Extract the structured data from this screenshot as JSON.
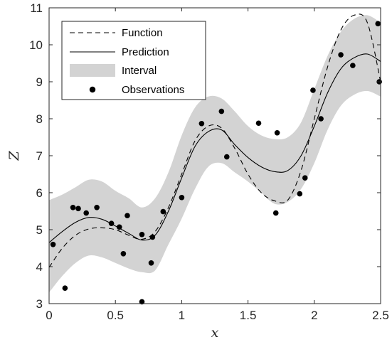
{
  "chart_data": {
    "type": "line",
    "xlabel": "x",
    "ylabel": "Z",
    "xlim": [
      0,
      2.5
    ],
    "ylim": [
      3,
      11
    ],
    "xticks": [
      "0",
      "0.5",
      "1",
      "1.5",
      "2",
      "2.5"
    ],
    "yticks": [
      "3",
      "4",
      "5",
      "6",
      "7",
      "8",
      "9",
      "10",
      "11"
    ],
    "grid": false,
    "legend_position": "top-left",
    "legend": [
      "Function",
      "Prediction",
      "Interval",
      "Observations"
    ],
    "colors": {
      "line": "#000000",
      "band": "#d3d3d3",
      "points": "#000000"
    },
    "x": [
      0,
      0.1,
      0.2,
      0.3,
      0.4,
      0.5,
      0.6,
      0.7,
      0.8,
      0.9,
      1.0,
      1.1,
      1.2,
      1.3,
      1.4,
      1.5,
      1.6,
      1.7,
      1.8,
      1.9,
      2.0,
      2.1,
      2.2,
      2.3,
      2.4,
      2.5
    ],
    "series": [
      {
        "name": "Function",
        "style": "dashed",
        "y": [
          3.98,
          4.5,
          4.85,
          5.02,
          5.05,
          5.0,
          4.85,
          4.74,
          4.95,
          5.6,
          6.5,
          7.4,
          7.8,
          7.75,
          7.2,
          6.5,
          6.0,
          5.78,
          5.8,
          6.6,
          8.0,
          9.4,
          10.4,
          10.8,
          10.6,
          9.0
        ]
      },
      {
        "name": "Prediction",
        "style": "solid",
        "y": [
          4.65,
          4.95,
          5.2,
          5.33,
          5.28,
          5.1,
          4.9,
          4.72,
          4.85,
          5.5,
          6.4,
          7.25,
          7.65,
          7.7,
          7.3,
          6.95,
          6.7,
          6.57,
          6.6,
          7.0,
          7.8,
          8.7,
          9.35,
          9.65,
          9.75,
          9.55
        ]
      },
      {
        "name": "Interval",
        "style": "band",
        "lower": [
          3.3,
          3.75,
          4.1,
          4.3,
          4.25,
          4.1,
          3.95,
          3.85,
          3.9,
          4.6,
          5.3,
          6.1,
          6.7,
          6.8,
          6.55,
          6.3,
          6.0,
          5.7,
          5.75,
          6.1,
          6.8,
          7.7,
          8.35,
          8.65,
          8.75,
          8.6
        ],
        "upper": [
          5.8,
          5.95,
          6.15,
          6.35,
          6.3,
          6.05,
          5.85,
          5.6,
          5.85,
          6.55,
          7.55,
          8.3,
          8.6,
          8.55,
          8.2,
          7.8,
          7.55,
          7.45,
          7.5,
          7.9,
          8.8,
          9.7,
          10.35,
          10.7,
          10.8,
          10.6
        ]
      }
    ],
    "observations": [
      [
        0.03,
        4.6
      ],
      [
        0.12,
        3.42
      ],
      [
        0.18,
        5.6
      ],
      [
        0.22,
        5.57
      ],
      [
        0.28,
        5.45
      ],
      [
        0.36,
        5.6
      ],
      [
        0.47,
        5.17
      ],
      [
        0.53,
        5.07
      ],
      [
        0.56,
        4.35
      ],
      [
        0.59,
        5.38
      ],
      [
        0.7,
        4.87
      ],
      [
        0.7,
        3.05
      ],
      [
        0.77,
        4.1
      ],
      [
        0.78,
        4.8
      ],
      [
        0.86,
        5.49
      ],
      [
        1.0,
        5.87
      ],
      [
        1.15,
        7.87
      ],
      [
        1.3,
        8.2
      ],
      [
        1.34,
        6.97
      ],
      [
        1.58,
        7.88
      ],
      [
        1.71,
        5.45
      ],
      [
        1.72,
        7.62
      ],
      [
        1.89,
        5.97
      ],
      [
        1.93,
        6.4
      ],
      [
        1.99,
        8.77
      ],
      [
        2.05,
        8.0
      ],
      [
        2.2,
        9.73
      ],
      [
        2.29,
        9.44
      ],
      [
        2.48,
        10.57
      ],
      [
        2.49,
        9.0
      ]
    ]
  }
}
